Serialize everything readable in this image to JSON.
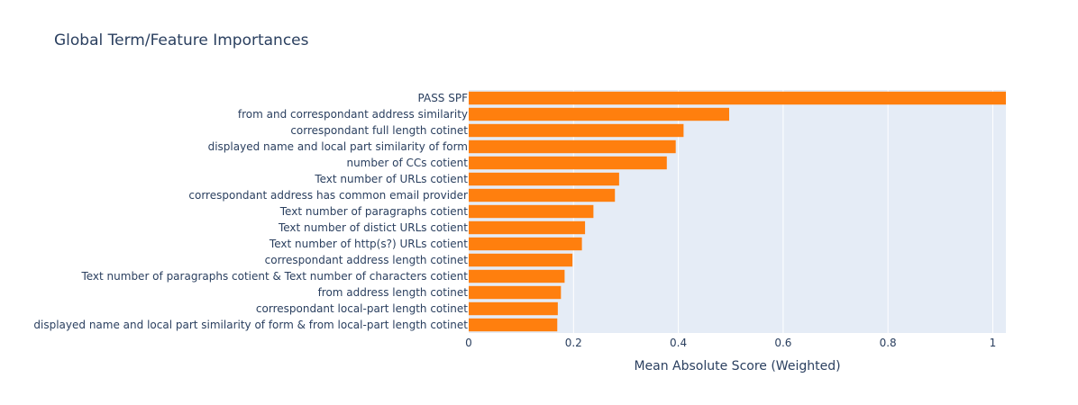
{
  "chart_data": {
    "type": "bar",
    "orientation": "horizontal",
    "title": "Global Term/Feature Importances",
    "xlabel": "Mean Absolute Score (Weighted)",
    "ylabel": "",
    "xlim": [
      0,
      1.025
    ],
    "xticks": [
      "0",
      "0.2",
      "0.4",
      "0.6",
      "0.8",
      "1"
    ],
    "xtick_values": [
      0,
      0.2,
      0.4,
      0.6,
      0.8,
      1.0
    ],
    "grid": true,
    "bar_color": "#ff7f0e",
    "plot_background": "#e5ecf6",
    "categories": [
      "PASS SPF",
      "from and correspondant address similarity",
      "correspondant full length cotinet",
      "displayed name and local part similarity of form",
      "number of CCs cotient",
      "Text number of URLs cotient",
      "correspondant address has common email provider",
      "Text number of paragraphs cotient",
      "Text number of distict URLs cotient",
      "Text number of http(s?) URLs cotient",
      "correspondant address length cotinet",
      "Text number of paragraphs cotient & Text number of characters cotient",
      "from address length cotinet",
      "correspondant local-part length cotinet",
      "displayed name and local part similarity of form & from local-part length cotinet"
    ],
    "values": [
      1.025,
      0.497,
      0.41,
      0.395,
      0.378,
      0.287,
      0.279,
      0.238,
      0.222,
      0.216,
      0.198,
      0.183,
      0.176,
      0.17,
      0.169
    ]
  }
}
